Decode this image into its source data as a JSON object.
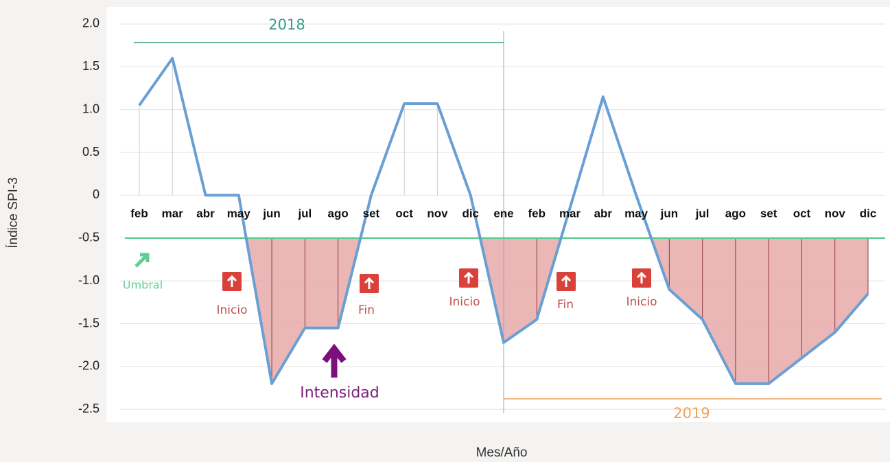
{
  "chart_data": {
    "type": "line",
    "x_label": "Mes/Año",
    "y_label": "Índice SPI-3",
    "categories": [
      "feb",
      "mar",
      "abr",
      "may",
      "jun",
      "jul",
      "ago",
      "set",
      "oct",
      "nov",
      "dic",
      "ene",
      "feb",
      "mar",
      "abr",
      "may",
      "jun",
      "jul",
      "ago",
      "set",
      "oct",
      "nov",
      "dic"
    ],
    "series": [
      {
        "name": "SPI-3",
        "color": "#6a9fd4",
        "values": [
          1.05,
          1.6,
          0,
          0,
          -2.2,
          -1.55,
          -1.55,
          0,
          1.07,
          1.07,
          0,
          -1.72,
          -1.45,
          -0.15,
          1.15,
          0,
          -1.1,
          -1.45,
          -2.2,
          -2.2,
          -1.9,
          -1.6,
          -1.15
        ]
      }
    ],
    "ylim": [
      -2.65,
      2.2
    ],
    "yticks": [
      {
        "value": 2,
        "label": "2.0"
      },
      1.5,
      {
        "value": 1,
        "label": "1.0"
      },
      0.5,
      0,
      -0.5,
      {
        "value": -1,
        "label": "-1.0"
      },
      -1.5,
      {
        "value": -2,
        "label": "-2.0"
      },
      -2.5
    ],
    "grid": true,
    "threshold": {
      "value": -0.5,
      "label": "Umbral",
      "color": "#5fcf8f"
    },
    "drought_fill": "#e8a9a9",
    "periods": [
      {
        "label": "2018",
        "color": "#3a9a8a"
      },
      {
        "label": "2019",
        "color": "#f0a25a"
      }
    ],
    "events": [
      "Inicio",
      "Fin",
      "Inicio",
      "Fin",
      "Inicio"
    ],
    "intensity_label": "Intensidad"
  }
}
